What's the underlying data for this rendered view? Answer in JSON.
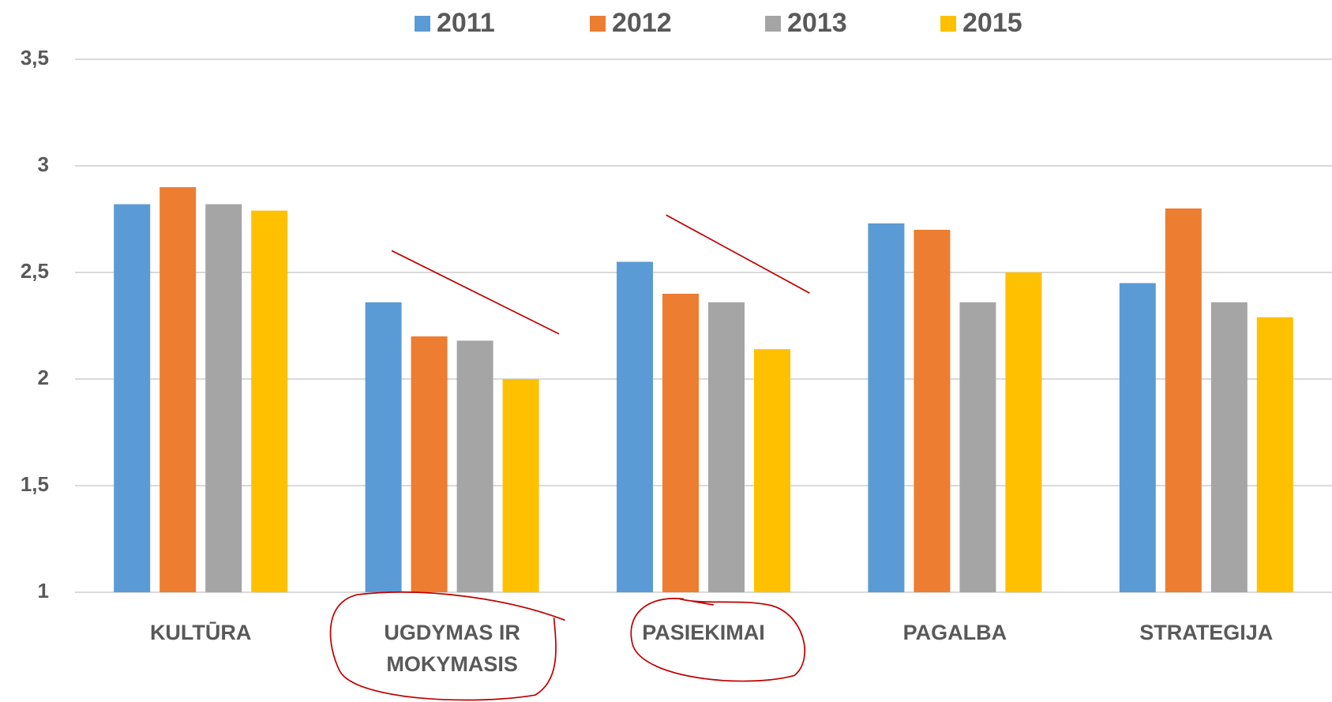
{
  "chart_data": {
    "type": "bar",
    "categories": [
      "KULTŪRA",
      "UGDYMAS IR MOKYMASIS",
      "PASIEKIMAI",
      "PAGALBA",
      "STRATEGIJA"
    ],
    "series": [
      {
        "name": "2011",
        "color": "#5b9bd5",
        "values": [
          2.82,
          2.36,
          2.55,
          2.73,
          2.45
        ]
      },
      {
        "name": "2012",
        "color": "#ed7d31",
        "values": [
          2.9,
          2.2,
          2.4,
          2.7,
          2.8
        ]
      },
      {
        "name": "2013",
        "color": "#a5a5a5",
        "values": [
          2.82,
          2.18,
          2.36,
          2.36,
          2.36
        ]
      },
      {
        "name": "2015",
        "color": "#ffc000",
        "values": [
          2.79,
          2.0,
          2.14,
          2.5,
          2.29
        ]
      }
    ],
    "ylim": [
      1,
      3.5
    ],
    "yticks": [
      1,
      {
        "value": 1.5,
        "label": "1,5"
      },
      2,
      {
        "value": 2.5,
        "label": "2,5"
      },
      3,
      {
        "value": 3.5,
        "label": "3,5"
      }
    ],
    "grid": true,
    "legend": "top"
  }
}
